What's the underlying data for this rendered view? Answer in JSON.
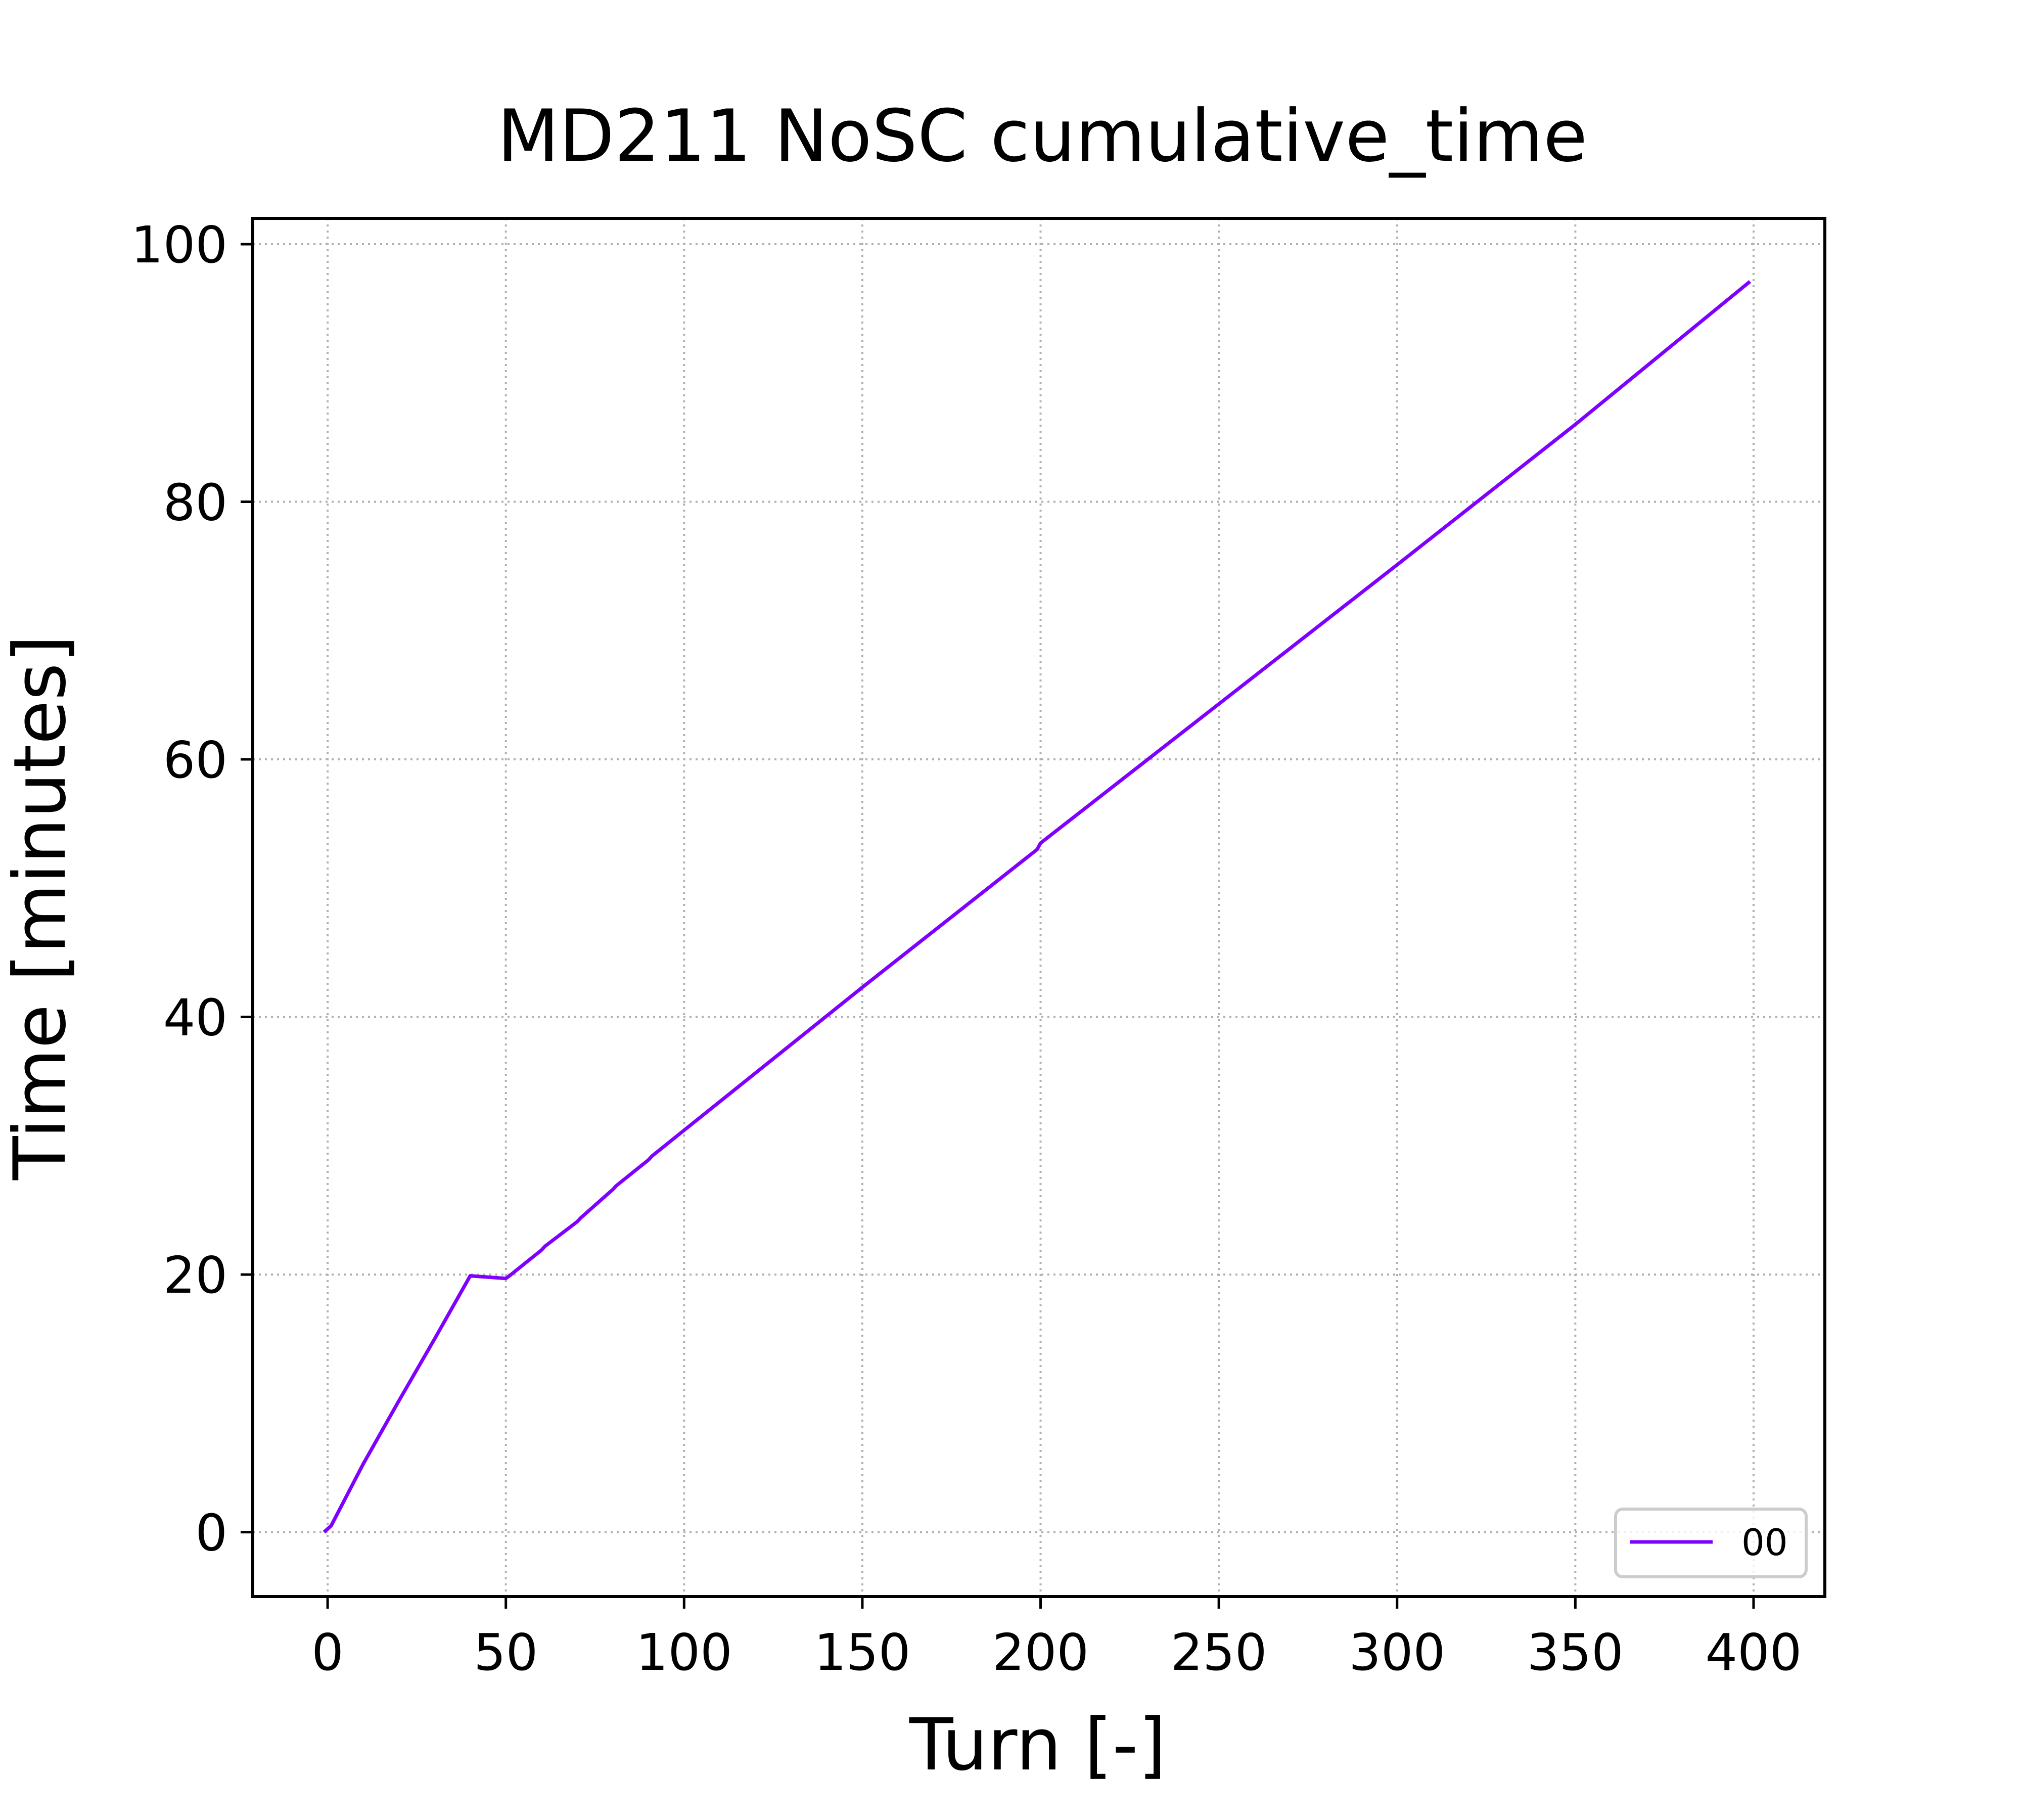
{
  "chart_data": {
    "type": "line",
    "title": "MD211 NoSC cumulative_time",
    "xlabel": "Turn [-]",
    "ylabel": "Time [minutes]",
    "xlim": [
      -21,
      420
    ],
    "ylim": [
      -5,
      102
    ],
    "xticks": [
      0,
      50,
      100,
      150,
      200,
      250,
      300,
      350,
      400
    ],
    "yticks": [
      0,
      20,
      40,
      60,
      80,
      100
    ],
    "grid": true,
    "legend_position": "lower-right",
    "series": [
      {
        "name": "00",
        "color": "#7f00ff",
        "x": [
          -1,
          1,
          10,
          20,
          30,
          40,
          50,
          51,
          60,
          61,
          70,
          71,
          80,
          81,
          90,
          91,
          100,
          150,
          199,
          200,
          250,
          300,
          350,
          399
        ],
        "y": [
          0,
          0.5,
          5.3,
          10.2,
          15.0,
          19.9,
          19.7,
          19.9,
          21.9,
          22.2,
          24.1,
          24.4,
          26.6,
          26.9,
          28.9,
          29.2,
          31.2,
          42.3,
          53.0,
          53.5,
          64.3,
          75.1,
          86.0,
          97.1
        ]
      }
    ]
  }
}
